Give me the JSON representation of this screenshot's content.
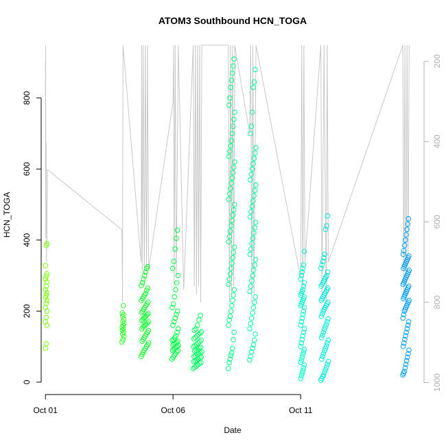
{
  "chart_data": {
    "type": "scatter",
    "title": "ATOM3 Southbound HCN_TOGA",
    "xlabel": "Date",
    "ylabel": "HCN_TOGA",
    "x_is_date": true,
    "xlim": [
      "2017-09-30T20:00",
      "2017-10-15T20:00"
    ],
    "ylim": [
      -35,
      960
    ],
    "x_ticks": [
      {
        "date": "2017-10-01T00:00",
        "label": "Oct 01"
      },
      {
        "date": "2017-10-06T00:00",
        "label": "Oct 06"
      },
      {
        "date": "2017-10-11T00:00",
        "label": "Oct 11"
      }
    ],
    "y_ticks": [
      0,
      200,
      400,
      600,
      800
    ],
    "right_axis": {
      "quantity": "pressure",
      "reversed": true,
      "ylim": [
        1030,
        150
      ],
      "ticks": [
        200,
        400,
        600,
        800,
        1000
      ],
      "color": "#b0b0b0"
    },
    "point_color_gradient": [
      "#80ff00",
      "#00ff40",
      "#00ffd0",
      "#0090ff"
    ],
    "series": [
      {
        "start": "2017-10-01T00:00",
        "end": "2017-10-01T02:00",
        "values": [
          95,
          108,
          160,
          170,
          182,
          200,
          210,
          222,
          230,
          238,
          245,
          252,
          260,
          270,
          282,
          290,
          298,
          305,
          328,
          385,
          390
        ]
      },
      {
        "start": "2017-10-04T00:00",
        "end": "2017-10-04T02:00",
        "values": [
          113,
          120,
          128,
          135,
          140,
          146,
          150,
          155,
          160,
          165,
          170,
          178,
          185,
          190,
          195,
          215
        ]
      },
      {
        "start": "2017-10-04T18:00",
        "end": "2017-10-05T01:00",
        "values": [
          72,
          78,
          85,
          90,
          95,
          100,
          105,
          110,
          115,
          120,
          125,
          130,
          135,
          140,
          145,
          150,
          155,
          158,
          160,
          163,
          166,
          170,
          173,
          176,
          180,
          183,
          186,
          190,
          193,
          196,
          200,
          205,
          210,
          215,
          220,
          225,
          230,
          235,
          240,
          245,
          250,
          258,
          265,
          272,
          280,
          290,
          300,
          310,
          320,
          325
        ]
      },
      {
        "start": "2017-10-05T23:00",
        "end": "2017-10-06T05:00",
        "values": [
          65,
          70,
          75,
          80,
          85,
          88,
          90,
          93,
          95,
          98,
          100,
          103,
          105,
          108,
          110,
          112,
          115,
          118,
          120,
          125,
          130,
          140,
          150,
          160,
          170,
          180,
          190,
          200,
          210,
          220,
          240,
          260,
          280,
          300,
          320,
          340,
          375,
          405,
          428
        ]
      },
      {
        "start": "2017-10-06T19:00",
        "end": "2017-10-07T03:00",
        "values": [
          38,
          42,
          45,
          48,
          52,
          55,
          58,
          60,
          62,
          65,
          68,
          70,
          72,
          75,
          78,
          80,
          82,
          85,
          88,
          90,
          92,
          95,
          98,
          100,
          103,
          106,
          110,
          114,
          118,
          122,
          126,
          130,
          134,
          138,
          142,
          146,
          150,
          160,
          175,
          188
        ]
      },
      {
        "start": "2017-10-08T04:00",
        "end": "2017-10-08T10:00",
        "values": [
          38,
          55,
          65,
          75,
          82,
          95,
          120,
          140,
          160,
          175,
          185,
          200,
          215,
          230,
          245,
          260,
          275,
          290,
          305,
          320,
          335,
          350,
          365,
          380,
          395,
          410,
          425,
          440,
          455,
          470,
          485,
          500,
          515,
          530,
          545,
          560,
          575,
          590,
          605,
          620,
          635,
          650,
          665,
          680,
          700,
          720,
          740,
          760,
          780,
          800,
          830,
          850,
          870,
          890,
          910
        ]
      },
      {
        "start": "2017-10-09T00:00",
        "end": "2017-10-09T06:00",
        "values": [
          62,
          72,
          85,
          95,
          105,
          118,
          135,
          150,
          165,
          180,
          195,
          210,
          225,
          240,
          255,
          270,
          285,
          300,
          315,
          330,
          345,
          360,
          375,
          390,
          405,
          420,
          435,
          450,
          465,
          480,
          495,
          510,
          525,
          540,
          555,
          570,
          585,
          600,
          615,
          630,
          645,
          660,
          700,
          720,
          760,
          830,
          845,
          880
        ]
      },
      {
        "start": "2017-10-11T00:00",
        "end": "2017-10-11T04:00",
        "values": [
          10,
          18,
          25,
          32,
          40,
          48,
          55,
          62,
          70,
          78,
          85,
          92,
          100,
          110,
          120,
          130,
          140,
          150,
          160,
          170,
          180,
          190,
          200,
          210,
          215,
          220,
          225,
          230,
          235,
          240,
          245,
          250,
          255,
          260,
          270,
          280,
          290,
          300,
          310,
          320,
          330,
          368
        ]
      },
      {
        "start": "2017-10-11T19:00",
        "end": "2017-10-12T02:00",
        "values": [
          5,
          10,
          15,
          20,
          28,
          35,
          42,
          50,
          58,
          65,
          72,
          80,
          88,
          95,
          102,
          110,
          118,
          125,
          132,
          140,
          148,
          155,
          162,
          170,
          178,
          185,
          192,
          200,
          205,
          210,
          215,
          220,
          225,
          230,
          235,
          240,
          245,
          250,
          255,
          260,
          265,
          270,
          275,
          280,
          285,
          290,
          295,
          300,
          310,
          320,
          330,
          340,
          350,
          360,
          430,
          440,
          468
        ]
      },
      {
        "start": "2017-10-15T00:00",
        "end": "2017-10-15T06:00",
        "values": [
          20,
          25,
          30,
          40,
          50,
          60,
          70,
          80,
          90,
          100,
          110,
          120,
          130,
          140,
          150,
          160,
          170,
          180,
          190,
          200,
          205,
          210,
          215,
          220,
          225,
          230,
          235,
          240,
          245,
          250,
          255,
          260,
          265,
          270,
          275,
          280,
          285,
          290,
          295,
          300,
          305,
          310,
          315,
          320,
          325,
          330,
          335,
          340,
          345,
          350,
          355,
          360,
          370,
          385,
          400,
          415,
          430,
          445,
          460
        ]
      }
    ],
    "pressure_track": {
      "color": "#c8c8c8",
      "points": [
        {
          "t": "2017-10-01T00:00",
          "p": 200
        },
        {
          "t": "2017-10-01T00:06",
          "p": 500
        },
        {
          "t": "2017-10-01T00:12",
          "p": 160
        },
        {
          "t": "2017-10-01T00:18",
          "p": 380
        },
        {
          "t": "2017-10-01T00:24",
          "p": 640
        },
        {
          "t": "2017-10-01T00:40",
          "p": 400
        },
        {
          "t": "2017-10-01T01:00",
          "p": 700
        },
        {
          "t": "2017-10-01T02:00",
          "p": 470
        },
        {
          "t": "2017-10-04T00:00",
          "p": 620
        },
        {
          "t": "2017-10-04T00:30",
          "p": 800
        },
        {
          "t": "2017-10-04T00:40",
          "p": 520
        },
        {
          "t": "2017-10-04T01:00",
          "p": 160
        },
        {
          "t": "2017-10-04T18:00",
          "p": 700
        },
        {
          "t": "2017-10-04T18:30",
          "p": 160
        },
        {
          "t": "2017-10-04T19:00",
          "p": 720
        },
        {
          "t": "2017-10-04T20:00",
          "p": 160
        },
        {
          "t": "2017-10-04T21:00",
          "p": 760
        },
        {
          "t": "2017-10-04T22:00",
          "p": 160
        },
        {
          "t": "2017-10-04T23:00",
          "p": 740
        },
        {
          "t": "2017-10-05T00:00",
          "p": 160
        },
        {
          "t": "2017-10-05T01:00",
          "p": 720
        },
        {
          "t": "2017-10-06T00:00",
          "p": 300
        },
        {
          "t": "2017-10-06T00:30",
          "p": 160
        },
        {
          "t": "2017-10-06T01:00",
          "p": 760
        },
        {
          "t": "2017-10-06T02:00",
          "p": 160
        },
        {
          "t": "2017-10-06T03:00",
          "p": 740
        },
        {
          "t": "2017-10-06T05:00",
          "p": 160
        },
        {
          "t": "2017-10-06T10:00",
          "p": 770
        },
        {
          "t": "2017-10-06T19:00",
          "p": 160
        },
        {
          "t": "2017-10-06T20:00",
          "p": 760
        },
        {
          "t": "2017-10-06T21:00",
          "p": 160
        },
        {
          "t": "2017-10-06T22:00",
          "p": 780
        },
        {
          "t": "2017-10-06T23:00",
          "p": 160
        },
        {
          "t": "2017-10-07T00:00",
          "p": 760
        },
        {
          "t": "2017-10-07T01:00",
          "p": 160
        },
        {
          "t": "2017-10-07T02:00",
          "p": 800
        },
        {
          "t": "2017-10-07T03:00",
          "p": 160
        },
        {
          "t": "2017-10-08T04:00",
          "p": 160
        },
        {
          "t": "2017-10-08T05:00",
          "p": 800
        },
        {
          "t": "2017-10-08T06:00",
          "p": 160
        },
        {
          "t": "2017-10-08T07:00",
          "p": 780
        },
        {
          "t": "2017-10-08T08:00",
          "p": 160
        },
        {
          "t": "2017-10-08T09:00",
          "p": 760
        },
        {
          "t": "2017-10-08T10:00",
          "p": 160
        },
        {
          "t": "2017-10-09T00:00",
          "p": 380
        },
        {
          "t": "2017-10-09T01:00",
          "p": 160
        },
        {
          "t": "2017-10-09T02:00",
          "p": 800
        },
        {
          "t": "2017-10-09T03:00",
          "p": 160
        },
        {
          "t": "2017-10-09T04:00",
          "p": 780
        },
        {
          "t": "2017-10-09T06:00",
          "p": 160
        },
        {
          "t": "2017-10-11T00:00",
          "p": 740
        },
        {
          "t": "2017-10-11T01:00",
          "p": 160
        },
        {
          "t": "2017-10-11T02:00",
          "p": 800
        },
        {
          "t": "2017-10-11T03:00",
          "p": 160
        },
        {
          "t": "2017-10-11T04:00",
          "p": 700
        },
        {
          "t": "2017-10-11T19:00",
          "p": 160
        },
        {
          "t": "2017-10-11T20:00",
          "p": 780
        },
        {
          "t": "2017-10-11T22:00",
          "p": 160
        },
        {
          "t": "2017-10-12T00:00",
          "p": 800
        },
        {
          "t": "2017-10-12T01:00",
          "p": 160
        },
        {
          "t": "2017-10-12T02:00",
          "p": 700
        },
        {
          "t": "2017-10-15T00:00",
          "p": 160
        },
        {
          "t": "2017-10-15T01:00",
          "p": 780
        },
        {
          "t": "2017-10-15T02:00",
          "p": 160
        },
        {
          "t": "2017-10-15T03:00",
          "p": 800
        },
        {
          "t": "2017-10-15T04:00",
          "p": 160
        },
        {
          "t": "2017-10-15T05:00",
          "p": 700
        },
        {
          "t": "2017-10-15T06:00",
          "p": 160
        }
      ]
    }
  }
}
